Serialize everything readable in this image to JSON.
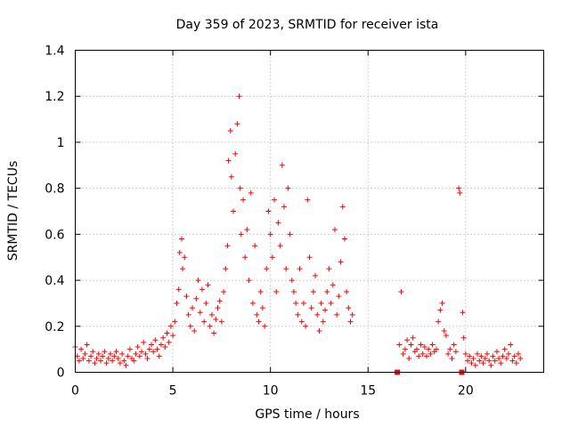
{
  "chart_data": {
    "type": "scatter",
    "title": "Day 359 of 2023, SRMTID for receiver ista",
    "xlabel": "GPS time / hours",
    "ylabel": "SRMTID / TECUs",
    "xlim": [
      0,
      24
    ],
    "ylim": [
      0,
      1.4
    ],
    "xticks": [
      0,
      5,
      10,
      15,
      20
    ],
    "yticks": [
      0,
      0.2,
      0.4,
      0.6,
      0.8,
      1,
      1.2,
      1.4
    ],
    "xtick_labels": [
      "0",
      "5",
      "10",
      "15",
      "20"
    ],
    "ytick_labels": [
      "0",
      "0.2",
      "0.4",
      "0.6",
      "0.8",
      "1",
      "1.2",
      "1.4"
    ],
    "grid": true,
    "marker": "plus",
    "color": "#ff0000",
    "series": [
      {
        "name": "SRMTID",
        "points": [
          [
            0.0,
            0.11
          ],
          [
            0.1,
            0.07
          ],
          [
            0.2,
            0.05
          ],
          [
            0.3,
            0.1
          ],
          [
            0.4,
            0.06
          ],
          [
            0.5,
            0.08
          ],
          [
            0.6,
            0.12
          ],
          [
            0.7,
            0.05
          ],
          [
            0.8,
            0.07
          ],
          [
            0.9,
            0.09
          ],
          [
            1.0,
            0.04
          ],
          [
            1.1,
            0.06
          ],
          [
            1.2,
            0.08
          ],
          [
            1.3,
            0.05
          ],
          [
            1.4,
            0.07
          ],
          [
            1.5,
            0.09
          ],
          [
            1.6,
            0.04
          ],
          [
            1.7,
            0.06
          ],
          [
            1.8,
            0.08
          ],
          [
            1.9,
            0.05
          ],
          [
            2.0,
            0.07
          ],
          [
            2.1,
            0.09
          ],
          [
            2.2,
            0.06
          ],
          [
            2.3,
            0.04
          ],
          [
            2.4,
            0.08
          ],
          [
            2.5,
            0.05
          ],
          [
            2.6,
            0.03
          ],
          [
            2.7,
            0.07
          ],
          [
            2.8,
            0.1
          ],
          [
            2.9,
            0.06
          ],
          [
            3.0,
            0.05
          ],
          [
            3.1,
            0.08
          ],
          [
            3.2,
            0.11
          ],
          [
            3.3,
            0.07
          ],
          [
            3.4,
            0.09
          ],
          [
            3.5,
            0.13
          ],
          [
            3.6,
            0.08
          ],
          [
            3.7,
            0.06
          ],
          [
            3.8,
            0.1
          ],
          [
            3.9,
            0.12
          ],
          [
            4.0,
            0.09
          ],
          [
            4.1,
            0.14
          ],
          [
            4.2,
            0.1
          ],
          [
            4.3,
            0.07
          ],
          [
            4.4,
            0.12
          ],
          [
            4.5,
            0.15
          ],
          [
            4.6,
            0.11
          ],
          [
            4.7,
            0.17
          ],
          [
            4.8,
            0.13
          ],
          [
            4.9,
            0.2
          ],
          [
            5.0,
            0.16
          ],
          [
            5.1,
            0.22
          ],
          [
            5.2,
            0.3
          ],
          [
            5.3,
            0.36
          ],
          [
            5.35,
            0.52
          ],
          [
            5.45,
            0.58
          ],
          [
            5.5,
            0.45
          ],
          [
            5.6,
            0.5
          ],
          [
            5.7,
            0.33
          ],
          [
            5.8,
            0.25
          ],
          [
            5.9,
            0.2
          ],
          [
            6.0,
            0.28
          ],
          [
            6.1,
            0.18
          ],
          [
            6.2,
            0.32
          ],
          [
            6.3,
            0.4
          ],
          [
            6.4,
            0.26
          ],
          [
            6.5,
            0.36
          ],
          [
            6.6,
            0.22
          ],
          [
            6.7,
            0.3
          ],
          [
            6.8,
            0.38
          ],
          [
            6.9,
            0.2
          ],
          [
            7.0,
            0.25
          ],
          [
            7.1,
            0.17
          ],
          [
            7.2,
            0.23
          ],
          [
            7.3,
            0.28
          ],
          [
            7.4,
            0.31
          ],
          [
            7.5,
            0.22
          ],
          [
            7.6,
            0.35
          ],
          [
            7.7,
            0.45
          ],
          [
            7.8,
            0.55
          ],
          [
            7.85,
            0.92
          ],
          [
            7.95,
            1.05
          ],
          [
            8.0,
            0.85
          ],
          [
            8.1,
            0.7
          ],
          [
            8.2,
            0.95
          ],
          [
            8.3,
            1.08
          ],
          [
            8.4,
            1.2
          ],
          [
            8.45,
            0.8
          ],
          [
            8.5,
            0.6
          ],
          [
            8.6,
            0.75
          ],
          [
            8.7,
            0.5
          ],
          [
            8.8,
            0.62
          ],
          [
            8.9,
            0.4
          ],
          [
            9.0,
            0.78
          ],
          [
            9.1,
            0.3
          ],
          [
            9.2,
            0.55
          ],
          [
            9.3,
            0.25
          ],
          [
            9.4,
            0.22
          ],
          [
            9.5,
            0.35
          ],
          [
            9.6,
            0.28
          ],
          [
            9.7,
            0.2
          ],
          [
            9.8,
            0.45
          ],
          [
            9.9,
            0.7
          ],
          [
            10.0,
            0.6
          ],
          [
            10.1,
            0.5
          ],
          [
            10.2,
            0.75
          ],
          [
            10.3,
            0.35
          ],
          [
            10.4,
            0.65
          ],
          [
            10.5,
            0.55
          ],
          [
            10.6,
            0.9
          ],
          [
            10.7,
            0.72
          ],
          [
            10.8,
            0.45
          ],
          [
            10.9,
            0.8
          ],
          [
            11.0,
            0.6
          ],
          [
            11.1,
            0.4
          ],
          [
            11.2,
            0.35
          ],
          [
            11.3,
            0.3
          ],
          [
            11.4,
            0.25
          ],
          [
            11.5,
            0.45
          ],
          [
            11.6,
            0.22
          ],
          [
            11.7,
            0.3
          ],
          [
            11.8,
            0.2
          ],
          [
            11.9,
            0.75
          ],
          [
            12.0,
            0.5
          ],
          [
            12.1,
            0.28
          ],
          [
            12.2,
            0.35
          ],
          [
            12.3,
            0.42
          ],
          [
            12.4,
            0.25
          ],
          [
            12.5,
            0.18
          ],
          [
            12.6,
            0.3
          ],
          [
            12.7,
            0.22
          ],
          [
            12.8,
            0.27
          ],
          [
            12.9,
            0.35
          ],
          [
            13.0,
            0.45
          ],
          [
            13.1,
            0.3
          ],
          [
            13.2,
            0.38
          ],
          [
            13.3,
            0.62
          ],
          [
            13.4,
            0.25
          ],
          [
            13.5,
            0.33
          ],
          [
            13.6,
            0.48
          ],
          [
            13.7,
            0.72
          ],
          [
            13.8,
            0.58
          ],
          [
            13.9,
            0.35
          ],
          [
            14.0,
            0.28
          ],
          [
            14.1,
            0.22
          ],
          [
            14.2,
            0.25
          ],
          [
            16.5,
            0.0
          ],
          [
            16.6,
            0.12
          ],
          [
            16.7,
            0.35
          ],
          [
            16.8,
            0.08
          ],
          [
            16.9,
            0.1
          ],
          [
            17.0,
            0.14
          ],
          [
            17.1,
            0.06
          ],
          [
            17.2,
            0.12
          ],
          [
            17.3,
            0.15
          ],
          [
            17.4,
            0.09
          ],
          [
            17.5,
            0.1
          ],
          [
            17.6,
            0.07
          ],
          [
            17.7,
            0.12
          ],
          [
            17.8,
            0.08
          ],
          [
            17.9,
            0.11
          ],
          [
            18.0,
            0.07
          ],
          [
            18.1,
            0.1
          ],
          [
            18.2,
            0.08
          ],
          [
            18.3,
            0.12
          ],
          [
            18.4,
            0.09
          ],
          [
            18.5,
            0.1
          ],
          [
            18.6,
            0.22
          ],
          [
            18.7,
            0.27
          ],
          [
            18.8,
            0.3
          ],
          [
            18.9,
            0.18
          ],
          [
            19.0,
            0.16
          ],
          [
            19.1,
            0.08
          ],
          [
            19.2,
            0.1
          ],
          [
            19.3,
            0.06
          ],
          [
            19.4,
            0.12
          ],
          [
            19.5,
            0.09
          ],
          [
            19.65,
            0.8
          ],
          [
            19.7,
            0.78
          ],
          [
            19.8,
            0.0
          ],
          [
            19.85,
            0.26
          ],
          [
            19.9,
            0.15
          ],
          [
            20.0,
            0.08
          ],
          [
            20.1,
            0.05
          ],
          [
            20.2,
            0.07
          ],
          [
            20.3,
            0.04
          ],
          [
            20.4,
            0.06
          ],
          [
            20.5,
            0.03
          ],
          [
            20.6,
            0.08
          ],
          [
            20.7,
            0.05
          ],
          [
            20.8,
            0.07
          ],
          [
            20.9,
            0.04
          ],
          [
            21.0,
            0.06
          ],
          [
            21.1,
            0.08
          ],
          [
            21.2,
            0.05
          ],
          [
            21.3,
            0.03
          ],
          [
            21.4,
            0.07
          ],
          [
            21.5,
            0.05
          ],
          [
            21.6,
            0.09
          ],
          [
            21.7,
            0.06
          ],
          [
            21.8,
            0.04
          ],
          [
            21.9,
            0.07
          ],
          [
            22.0,
            0.1
          ],
          [
            22.1,
            0.06
          ],
          [
            22.2,
            0.08
          ],
          [
            22.3,
            0.12
          ],
          [
            22.4,
            0.05
          ],
          [
            22.5,
            0.07
          ],
          [
            22.6,
            0.04
          ],
          [
            22.7,
            0.08
          ],
          [
            22.8,
            0.06
          ]
        ]
      }
    ],
    "square_markers": [
      [
        16.5,
        0.0
      ],
      [
        19.8,
        0.0
      ]
    ]
  }
}
